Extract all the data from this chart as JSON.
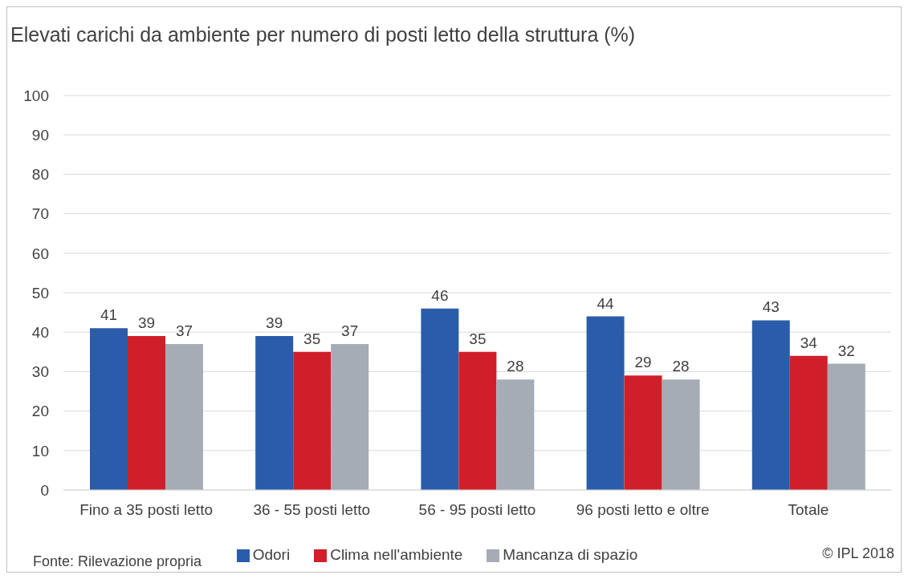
{
  "chart_data": {
    "type": "bar",
    "title": "Elevati carichi da ambiente per numero di posti letto della struttura (%)",
    "categories": [
      "Fino a 35 posti letto",
      "36 - 55 posti letto",
      "56 - 95 posti letto",
      "96 posti letto e oltre",
      "Totale"
    ],
    "series": [
      {
        "name": "Odori",
        "color": "#2a5caa",
        "values": [
          41,
          39,
          46,
          44,
          43
        ]
      },
      {
        "name": "Clima nell'ambiente",
        "color": "#d01f2a",
        "values": [
          39,
          35,
          35,
          29,
          34
        ]
      },
      {
        "name": "Mancanza di spazio",
        "color": "#a5acb5",
        "values": [
          37,
          37,
          28,
          28,
          32
        ]
      }
    ],
    "ylim": [
      0,
      100
    ],
    "yticks": [
      0,
      10,
      20,
      30,
      40,
      50,
      60,
      70,
      80,
      90,
      100
    ],
    "grid": "y",
    "legend": "bottom",
    "data_labels": true,
    "annotations": [
      "Fonte: Rilevazione propria",
      "© IPL 2018"
    ]
  }
}
